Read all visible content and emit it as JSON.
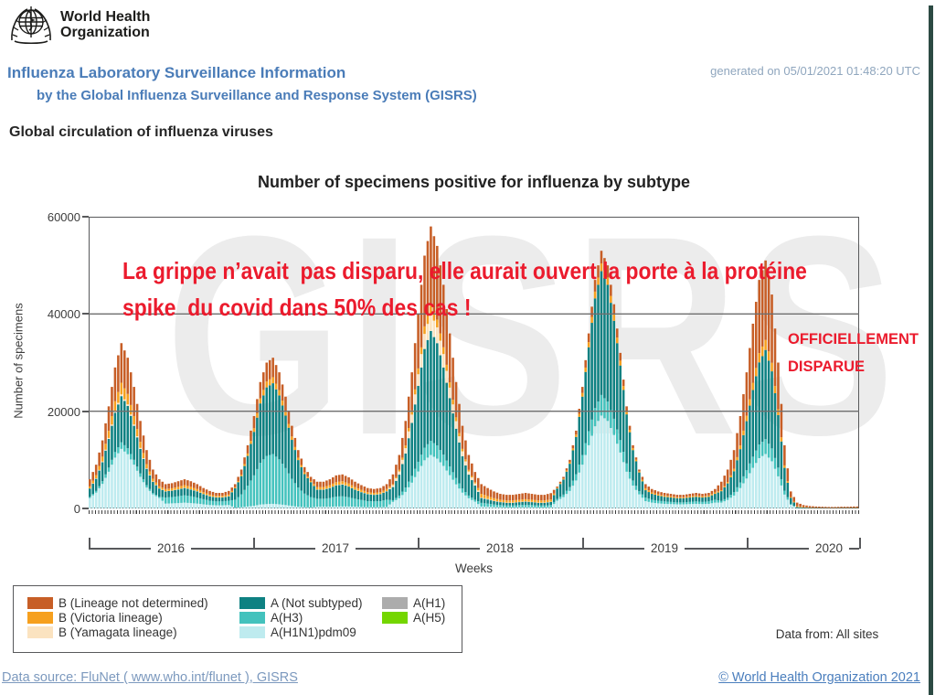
{
  "header": {
    "logo_line1": "World Health",
    "logo_line2": "Organization",
    "title": "Influenza Laboratory Surveillance Information",
    "subtitle": "by the Global Influenza Surveillance and Response System (GISRS)",
    "generated": "generated on 05/01/2021 01:48:20 UTC",
    "section_title": "Global circulation of influenza viruses"
  },
  "annotations": {
    "overlay_line1": "La grippe n’avait  pas disparu, elle aurait ouvert la porte à la protéine",
    "overlay_line2": "spike  du covid dans 50% des cas !",
    "stamp_line1": "OFFICIELLEMENT",
    "stamp_line2": "DISPARUE",
    "annotation_color": "#EB1B2D",
    "watermark": "GISRS"
  },
  "footer": {
    "data_from": "Data from: All sites",
    "data_source": "Data source: FluNet ( www.who.int/flunet ), GISRS",
    "copyright": "© World Health Organization 2021"
  },
  "decor": {
    "right_strip_color": "#2C4A43"
  },
  "chart_data": {
    "type": "bar",
    "stacked": true,
    "title": "Number of specimens positive for influenza by subtype",
    "xlabel": "Weeks",
    "ylabel": "Number of specimens",
    "ylim": [
      0,
      60000
    ],
    "yticks": [
      0,
      20000,
      40000,
      60000
    ],
    "grid": "horizontal at 20000 and 40000",
    "x": {
      "unit": "2-week intervals",
      "start": "2016 week 1",
      "end": "2020 ~week 36",
      "points": 122
    },
    "year_labels": [
      "2016",
      "2017",
      "2018",
      "2019",
      "2020"
    ],
    "stack_order": [
      "a_h1n1",
      "a_h1",
      "a_h3",
      "a_h5",
      "a_ns",
      "b_yam",
      "b_vic",
      "b_nd"
    ],
    "legend_columns": [
      [
        "b_nd",
        "b_vic",
        "b_yam"
      ],
      [
        "a_ns",
        "a_h3",
        "a_h1n1"
      ],
      [
        "a_h1",
        "a_h5"
      ]
    ],
    "series": [
      {
        "id": "b_nd",
        "name": "B (Lineage not determined)",
        "color": "#C75E26",
        "values": [
          1450,
          2150,
          3350,
          5050,
          6950,
          8150,
          7450,
          6000,
          4300,
          2900,
          1900,
          1450,
          1000,
          1050,
          1150,
          1200,
          1150,
          1000,
          850,
          750,
          600,
          600,
          750,
          650,
          1050,
          1700,
          2500,
          3350,
          3900,
          4000,
          3650,
          3000,
          2200,
          1550,
          1100,
          850,
          1100,
          1100,
          1200,
          1400,
          1400,
          1250,
          1100,
          950,
          850,
          800,
          850,
          1000,
          2000,
          3050,
          5050,
          7850,
          11200,
          14550,
          16250,
          15150,
          12850,
          10050,
          7250,
          4750,
          3050,
          2100,
          2000,
          1650,
          1400,
          1200,
          1150,
          1150,
          1200,
          1300,
          1200,
          1150,
          1150,
          1300,
          250,
          350,
          500,
          800,
          1250,
          1800,
          2400,
          2600,
          2500,
          2100,
          1600,
          1050,
          600,
          350,
          850,
          700,
          600,
          550,
          500,
          500,
          500,
          500,
          550,
          500,
          550,
          700,
          1750,
          2550,
          3850,
          6050,
          8950,
          12150,
          15050,
          16350,
          14050,
          9600,
          4150,
          1150,
          720,
          420,
          300,
          240,
          210,
          180,
          180,
          210,
          210,
          240
        ]
      },
      {
        "id": "b_vic",
        "name": "B (Victoria lineage)",
        "color": "#F6A01E",
        "values": [
          400,
          650,
          1000,
          1450,
          2050,
          2400,
          2150,
          1750,
          1250,
          850,
          550,
          400,
          450,
          450,
          500,
          550,
          500,
          450,
          350,
          300,
          300,
          300,
          300,
          200,
          300,
          500,
          750,
          1050,
          1200,
          1250,
          1100,
          900,
          700,
          500,
          350,
          250,
          500,
          500,
          550,
          600,
          600,
          600,
          500,
          450,
          350,
          350,
          350,
          450,
          200,
          350,
          550,
          850,
          1200,
          1550,
          1750,
          1600,
          1400,
          1100,
          800,
          500,
          350,
          250,
          750,
          600,
          500,
          450,
          450,
          450,
          450,
          450,
          450,
          450,
          450,
          450,
          150,
          200,
          300,
          500,
          750,
          1050,
          1400,
          1600,
          1500,
          1300,
          1000,
          600,
          400,
          250,
          400,
          300,
          250,
          250,
          250,
          200,
          200,
          250,
          250,
          250,
          250,
          300,
          200,
          300,
          500,
          750,
          1100,
          1500,
          1900,
          2050,
          1750,
          1200,
          500,
          150,
          180,
          105,
          75,
          60,
          50,
          45,
          45,
          50,
          50,
          60
        ]
      },
      {
        "id": "b_yam",
        "name": "B (Yamagata lineage)",
        "color": "#FBE3C0",
        "values": [
          50,
          100,
          150,
          200,
          300,
          350,
          300,
          250,
          200,
          100,
          100,
          50,
          50,
          50,
          50,
          50,
          50,
          50,
          50,
          50,
          50,
          50,
          50,
          0,
          0,
          0,
          0,
          0,
          0,
          0,
          0,
          0,
          0,
          0,
          0,
          0,
          50,
          50,
          50,
          50,
          100,
          50,
          50,
          50,
          50,
          50,
          50,
          50,
          400,
          650,
          1100,
          1700,
          2400,
          3100,
          3500,
          3250,
          2750,
          2150,
          1550,
          1000,
          650,
          450,
          100,
          100,
          100,
          50,
          50,
          50,
          50,
          50,
          50,
          50,
          50,
          50,
          0,
          0,
          0,
          0,
          0,
          0,
          0,
          0,
          0,
          0,
          0,
          0,
          0,
          0,
          0,
          0,
          0,
          0,
          0,
          0,
          0,
          0,
          0,
          0,
          0,
          0,
          0,
          0,
          0,
          0,
          0,
          0,
          0,
          0,
          0,
          0,
          0,
          0,
          0,
          0,
          0,
          0,
          0,
          0,
          0,
          0
        ]
      },
      {
        "id": "a_ns",
        "name": "A (Not subtyped)",
        "color": "#0E8182",
        "values": [
          1700,
          2500,
          3900,
          5900,
          8100,
          9500,
          8700,
          7000,
          5050,
          3350,
          2250,
          1700,
          1250,
          1300,
          1400,
          1500,
          1400,
          1250,
          1050,
          900,
          800,
          800,
          900,
          2350,
          3750,
          6100,
          8950,
          12200,
          14100,
          14550,
          13150,
          10800,
          8000,
          5650,
          4000,
          3050,
          1850,
          1850,
          2050,
          2300,
          2400,
          2200,
          1850,
          1600,
          1450,
          1350,
          1450,
          1700,
          2700,
          4300,
          7000,
          10900,
          15600,
          20300,
          22600,
          21050,
          17950,
          14050,
          10150,
          6650,
          4300,
          2900,
          1000,
          850,
          700,
          600,
          550,
          550,
          600,
          650,
          600,
          550,
          550,
          650,
          2150,
          3100,
          4800,
          7650,
          12000,
          17250,
          22550,
          25450,
          24000,
          20150,
          15350,
          10100,
          6250,
          3850,
          1500,
          1200,
          1050,
          950,
          900,
          850,
          850,
          900,
          950,
          900,
          950,
          1200,
          2000,
          2900,
          4300,
          6850,
          10100,
          13700,
          16900,
          18350,
          15850,
          10800,
          4700,
          1250,
          180,
          105,
          75,
          60,
          50,
          45,
          45,
          50,
          50,
          60
        ]
      },
      {
        "id": "a_h3",
        "name": "A(H3)",
        "color": "#43C2BD",
        "values": [
          250,
          350,
          550,
          850,
          1150,
          1350,
          1250,
          1000,
          700,
          500,
          300,
          250,
          1250,
          1300,
          1400,
          1500,
          1400,
          1250,
          1050,
          900,
          800,
          800,
          900,
          1650,
          2650,
          4300,
          6250,
          8600,
          9900,
          10250,
          9250,
          7600,
          5600,
          3950,
          2800,
          2150,
          1650,
          1650,
          1800,
          2050,
          2100,
          1900,
          1650,
          1450,
          1250,
          1200,
          1250,
          1500,
          350,
          550,
          900,
          1400,
          2000,
          2600,
          2900,
          2700,
          2300,
          1800,
          1300,
          850,
          550,
          400,
          750,
          650,
          500,
          450,
          400,
          400,
          450,
          500,
          450,
          400,
          400,
          450,
          350,
          500,
          800,
          1300,
          2000,
          2900,
          3750,
          4250,
          4000,
          3350,
          2550,
          1700,
          1050,
          650,
          750,
          600,
          550,
          500,
          450,
          400,
          400,
          450,
          500,
          450,
          500,
          600,
          350,
          500,
          700,
          1150,
          1700,
          2300,
          2800,
          3050,
          2650,
          1800,
          800,
          200,
          60,
          35,
          25,
          20,
          20,
          15,
          15,
          20,
          20,
          20
        ]
      },
      {
        "id": "a_h1n1",
        "name": "A(H1N1)pdm09",
        "color": "#BEEBEF",
        "values": [
          2150,
          3250,
          5050,
          7550,
          10450,
          12250,
          11150,
          9000,
          6500,
          4300,
          2900,
          2150,
          1000,
          1050,
          1100,
          1200,
          1100,
          1000,
          850,
          700,
          650,
          650,
          700,
          150,
          250,
          400,
          550,
          800,
          900,
          950,
          850,
          700,
          500,
          350,
          250,
          200,
          350,
          350,
          350,
          400,
          400,
          400,
          350,
          300,
          250,
          250,
          250,
          300,
          1350,
          2100,
          3400,
          5300,
          7600,
          9900,
          11000,
          10250,
          8750,
          6850,
          4950,
          3250,
          2100,
          1400,
          400,
          350,
          300,
          250,
          200,
          200,
          250,
          250,
          250,
          200,
          200,
          250,
          1600,
          2350,
          3600,
          5750,
          9000,
          13000,
          16900,
          19100,
          18000,
          15100,
          11500,
          7550,
          4700,
          2900,
          1500,
          1200,
          1050,
          950,
          900,
          850,
          850,
          900,
          950,
          900,
          950,
          1200,
          1200,
          1750,
          2650,
          4200,
          6150,
          8350,
          10350,
          11200,
          9700,
          6600,
          2850,
          750,
          60,
          35,
          25,
          20,
          20,
          15,
          15,
          20,
          20,
          20
        ]
      },
      {
        "id": "a_h1",
        "name": "A(H1)",
        "color": "#ACACAC",
        "note": "negligible (≈0) throughout shown period",
        "values": []
      },
      {
        "id": "a_h5",
        "name": "A(H5)",
        "color": "#74D600",
        "note": "negligible (≈0) throughout shown period",
        "values": []
      }
    ],
    "peaks_note": "seasonal peaks ≈ 34000 (early 2016), 31000 (early 2017), 58000 (early 2018), 53000 (early 2019), 51000 (early 2020), near zero after April 2020"
  }
}
